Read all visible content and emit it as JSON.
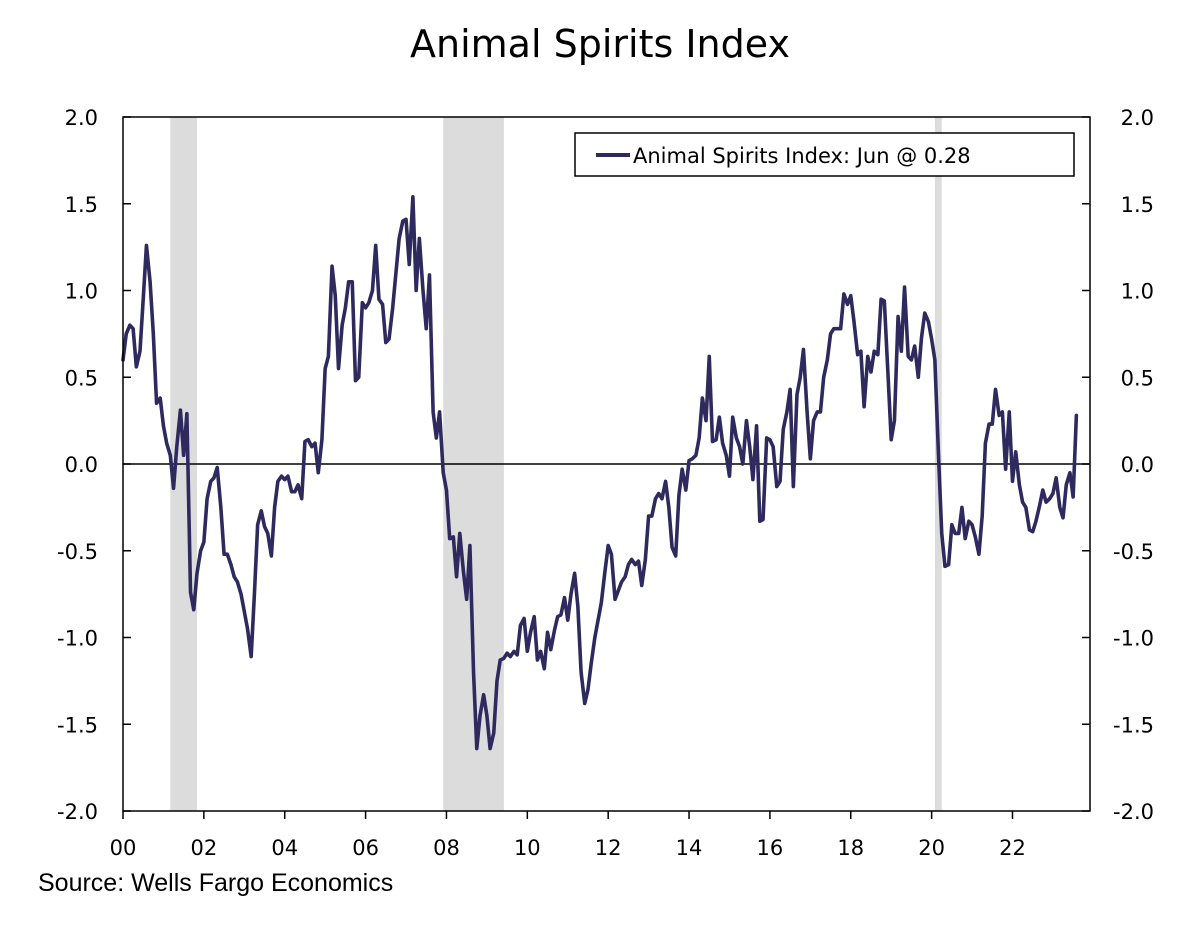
{
  "chart_data": {
    "type": "line",
    "title": "Animal Spirits Index",
    "source": "Source: Wells Fargo Economics",
    "xlim": [
      2000.0,
      2023.917
    ],
    "ylim": [
      -2.0,
      2.0
    ],
    "x_ticks": [
      {
        "value": 2000,
        "label": "00"
      },
      {
        "value": 2002,
        "label": "02"
      },
      {
        "value": 2004,
        "label": "04"
      },
      {
        "value": 2006,
        "label": "06"
      },
      {
        "value": 2008,
        "label": "08"
      },
      {
        "value": 2010,
        "label": "10"
      },
      {
        "value": 2012,
        "label": "12"
      },
      {
        "value": 2014,
        "label": "14"
      },
      {
        "value": 2016,
        "label": "16"
      },
      {
        "value": 2018,
        "label": "18"
      },
      {
        "value": 2020,
        "label": "20"
      },
      {
        "value": 2022,
        "label": "22"
      }
    ],
    "y_ticks": [
      {
        "value": 2.0,
        "label": "2.0"
      },
      {
        "value": 1.5,
        "label": "1.5"
      },
      {
        "value": 1.0,
        "label": "1.0"
      },
      {
        "value": 0.5,
        "label": "0.5"
      },
      {
        "value": 0.0,
        "label": "0.0"
      },
      {
        "value": -0.5,
        "label": "-0.5"
      },
      {
        "value": -1.0,
        "label": "-1.0"
      },
      {
        "value": -1.5,
        "label": "-1.5"
      },
      {
        "value": -2.0,
        "label": "-2.0"
      }
    ],
    "recessions": [
      [
        2001.17,
        2001.83
      ],
      [
        2007.92,
        2009.42
      ],
      [
        2020.08,
        2020.25
      ]
    ],
    "zero_line": true,
    "legend_placement": "top-right",
    "colors": {
      "series": "#2e2a5e",
      "recession": "#dcdcdc"
    },
    "series": [
      {
        "name": "Animal Spirits Index: Jun @ 0.28",
        "points": [
          [
            2000.0,
            0.6
          ],
          [
            2000.08,
            0.75
          ],
          [
            2000.17,
            0.8
          ],
          [
            2000.25,
            0.78
          ],
          [
            2000.33,
            0.56
          ],
          [
            2000.42,
            0.65
          ],
          [
            2000.5,
            0.95
          ],
          [
            2000.58,
            1.26
          ],
          [
            2000.67,
            1.05
          ],
          [
            2000.75,
            0.75
          ],
          [
            2000.83,
            0.35
          ],
          [
            2000.92,
            0.38
          ],
          [
            2001.0,
            0.22
          ],
          [
            2001.08,
            0.12
          ],
          [
            2001.17,
            0.05
          ],
          [
            2001.25,
            -0.14
          ],
          [
            2001.33,
            0.1
          ],
          [
            2001.42,
            0.31
          ],
          [
            2001.5,
            0.05
          ],
          [
            2001.58,
            0.29
          ],
          [
            2001.67,
            -0.74
          ],
          [
            2001.75,
            -0.84
          ],
          [
            2001.83,
            -0.63
          ],
          [
            2001.92,
            -0.5
          ],
          [
            2002.0,
            -0.45
          ],
          [
            2002.08,
            -0.2
          ],
          [
            2002.17,
            -0.1
          ],
          [
            2002.25,
            -0.08
          ],
          [
            2002.33,
            -0.02
          ],
          [
            2002.42,
            -0.25
          ],
          [
            2002.5,
            -0.52
          ],
          [
            2002.58,
            -0.52
          ],
          [
            2002.67,
            -0.58
          ],
          [
            2002.75,
            -0.65
          ],
          [
            2002.83,
            -0.68
          ],
          [
            2002.92,
            -0.75
          ],
          [
            2003.0,
            -0.85
          ],
          [
            2003.08,
            -0.95
          ],
          [
            2003.17,
            -1.11
          ],
          [
            2003.25,
            -0.75
          ],
          [
            2003.33,
            -0.35
          ],
          [
            2003.42,
            -0.27
          ],
          [
            2003.5,
            -0.36
          ],
          [
            2003.58,
            -0.4
          ],
          [
            2003.67,
            -0.53
          ],
          [
            2003.75,
            -0.25
          ],
          [
            2003.83,
            -0.1
          ],
          [
            2003.92,
            -0.07
          ],
          [
            2004.0,
            -0.09
          ],
          [
            2004.08,
            -0.07
          ],
          [
            2004.17,
            -0.16
          ],
          [
            2004.25,
            -0.16
          ],
          [
            2004.33,
            -0.12
          ],
          [
            2004.42,
            -0.2
          ],
          [
            2004.5,
            0.13
          ],
          [
            2004.58,
            0.14
          ],
          [
            2004.67,
            0.1
          ],
          [
            2004.75,
            0.12
          ],
          [
            2004.83,
            -0.05
          ],
          [
            2004.92,
            0.14
          ],
          [
            2005.0,
            0.55
          ],
          [
            2005.08,
            0.62
          ],
          [
            2005.17,
            1.14
          ],
          [
            2005.25,
            0.97
          ],
          [
            2005.33,
            0.55
          ],
          [
            2005.42,
            0.8
          ],
          [
            2005.5,
            0.9
          ],
          [
            2005.58,
            1.05
          ],
          [
            2005.67,
            1.05
          ],
          [
            2005.75,
            0.48
          ],
          [
            2005.83,
            0.5
          ],
          [
            2005.92,
            0.93
          ],
          [
            2006.0,
            0.9
          ],
          [
            2006.08,
            0.93
          ],
          [
            2006.17,
            1.0
          ],
          [
            2006.25,
            1.26
          ],
          [
            2006.33,
            0.95
          ],
          [
            2006.42,
            0.92
          ],
          [
            2006.5,
            0.7
          ],
          [
            2006.58,
            0.72
          ],
          [
            2006.67,
            0.9
          ],
          [
            2006.75,
            1.1
          ],
          [
            2006.83,
            1.3
          ],
          [
            2006.92,
            1.4
          ],
          [
            2007.0,
            1.41
          ],
          [
            2007.08,
            1.15
          ],
          [
            2007.17,
            1.54
          ],
          [
            2007.25,
            1.0
          ],
          [
            2007.33,
            1.3
          ],
          [
            2007.42,
            1.0
          ],
          [
            2007.5,
            0.78
          ],
          [
            2007.58,
            1.09
          ],
          [
            2007.67,
            0.3
          ],
          [
            2007.75,
            0.15
          ],
          [
            2007.83,
            0.3
          ],
          [
            2007.92,
            -0.05
          ],
          [
            2008.0,
            -0.15
          ],
          [
            2008.08,
            -0.43
          ],
          [
            2008.17,
            -0.42
          ],
          [
            2008.25,
            -0.65
          ],
          [
            2008.33,
            -0.4
          ],
          [
            2008.42,
            -0.62
          ],
          [
            2008.5,
            -0.78
          ],
          [
            2008.58,
            -0.47
          ],
          [
            2008.67,
            -1.2
          ],
          [
            2008.75,
            -1.64
          ],
          [
            2008.83,
            -1.45
          ],
          [
            2008.92,
            -1.33
          ],
          [
            2009.0,
            -1.45
          ],
          [
            2009.08,
            -1.64
          ],
          [
            2009.17,
            -1.55
          ],
          [
            2009.25,
            -1.25
          ],
          [
            2009.33,
            -1.13
          ],
          [
            2009.42,
            -1.12
          ],
          [
            2009.5,
            -1.09
          ],
          [
            2009.58,
            -1.11
          ],
          [
            2009.67,
            -1.08
          ],
          [
            2009.75,
            -1.1
          ],
          [
            2009.83,
            -0.93
          ],
          [
            2009.92,
            -0.89
          ],
          [
            2010.0,
            -1.08
          ],
          [
            2010.08,
            -0.97
          ],
          [
            2010.17,
            -0.88
          ],
          [
            2010.25,
            -1.13
          ],
          [
            2010.33,
            -1.08
          ],
          [
            2010.42,
            -1.18
          ],
          [
            2010.5,
            -0.97
          ],
          [
            2010.58,
            -1.07
          ],
          [
            2010.67,
            -0.96
          ],
          [
            2010.75,
            -0.88
          ],
          [
            2010.83,
            -0.87
          ],
          [
            2010.92,
            -0.77
          ],
          [
            2011.0,
            -0.9
          ],
          [
            2011.08,
            -0.75
          ],
          [
            2011.17,
            -0.63
          ],
          [
            2011.25,
            -0.82
          ],
          [
            2011.33,
            -1.2
          ],
          [
            2011.42,
            -1.38
          ],
          [
            2011.5,
            -1.3
          ],
          [
            2011.58,
            -1.15
          ],
          [
            2011.67,
            -1.0
          ],
          [
            2011.75,
            -0.9
          ],
          [
            2011.83,
            -0.8
          ],
          [
            2011.92,
            -0.62
          ],
          [
            2012.0,
            -0.47
          ],
          [
            2012.08,
            -0.52
          ],
          [
            2012.17,
            -0.78
          ],
          [
            2012.25,
            -0.73
          ],
          [
            2012.33,
            -0.68
          ],
          [
            2012.42,
            -0.65
          ],
          [
            2012.5,
            -0.58
          ],
          [
            2012.58,
            -0.55
          ],
          [
            2012.67,
            -0.58
          ],
          [
            2012.75,
            -0.56
          ],
          [
            2012.83,
            -0.7
          ],
          [
            2012.92,
            -0.55
          ],
          [
            2013.0,
            -0.3
          ],
          [
            2013.08,
            -0.3
          ],
          [
            2013.17,
            -0.2
          ],
          [
            2013.25,
            -0.17
          ],
          [
            2013.33,
            -0.2
          ],
          [
            2013.42,
            -0.1
          ],
          [
            2013.5,
            -0.25
          ],
          [
            2013.58,
            -0.48
          ],
          [
            2013.67,
            -0.53
          ],
          [
            2013.75,
            -0.18
          ],
          [
            2013.83,
            -0.03
          ],
          [
            2013.92,
            -0.15
          ],
          [
            2014.0,
            0.02
          ],
          [
            2014.08,
            0.03
          ],
          [
            2014.17,
            0.05
          ],
          [
            2014.25,
            0.15
          ],
          [
            2014.33,
            0.38
          ],
          [
            2014.42,
            0.25
          ],
          [
            2014.5,
            0.62
          ],
          [
            2014.58,
            0.13
          ],
          [
            2014.67,
            0.14
          ],
          [
            2014.75,
            0.27
          ],
          [
            2014.83,
            0.12
          ],
          [
            2014.92,
            0.05
          ],
          [
            2015.0,
            -0.07
          ],
          [
            2015.08,
            0.27
          ],
          [
            2015.17,
            0.15
          ],
          [
            2015.25,
            0.1
          ],
          [
            2015.33,
            0.0
          ],
          [
            2015.42,
            0.25
          ],
          [
            2015.5,
            0.1
          ],
          [
            2015.58,
            -0.09
          ],
          [
            2015.67,
            0.22
          ],
          [
            2015.75,
            -0.33
          ],
          [
            2015.83,
            -0.32
          ],
          [
            2015.92,
            0.15
          ],
          [
            2016.0,
            0.14
          ],
          [
            2016.08,
            0.1
          ],
          [
            2016.17,
            -0.13
          ],
          [
            2016.25,
            -0.1
          ],
          [
            2016.33,
            0.2
          ],
          [
            2016.42,
            0.3
          ],
          [
            2016.5,
            0.43
          ],
          [
            2016.58,
            -0.13
          ],
          [
            2016.67,
            0.4
          ],
          [
            2016.75,
            0.5
          ],
          [
            2016.83,
            0.66
          ],
          [
            2016.92,
            0.3
          ],
          [
            2017.0,
            0.03
          ],
          [
            2017.08,
            0.25
          ],
          [
            2017.17,
            0.3
          ],
          [
            2017.25,
            0.3
          ],
          [
            2017.33,
            0.5
          ],
          [
            2017.42,
            0.6
          ],
          [
            2017.5,
            0.75
          ],
          [
            2017.58,
            0.78
          ],
          [
            2017.67,
            0.78
          ],
          [
            2017.75,
            0.78
          ],
          [
            2017.83,
            0.98
          ],
          [
            2017.92,
            0.92
          ],
          [
            2018.0,
            0.97
          ],
          [
            2018.08,
            0.82
          ],
          [
            2018.17,
            0.63
          ],
          [
            2018.25,
            0.65
          ],
          [
            2018.33,
            0.33
          ],
          [
            2018.42,
            0.62
          ],
          [
            2018.5,
            0.53
          ],
          [
            2018.58,
            0.65
          ],
          [
            2018.67,
            0.63
          ],
          [
            2018.75,
            0.95
          ],
          [
            2018.83,
            0.94
          ],
          [
            2018.92,
            0.52
          ],
          [
            2019.0,
            0.14
          ],
          [
            2019.08,
            0.25
          ],
          [
            2019.17,
            0.85
          ],
          [
            2019.25,
            0.65
          ],
          [
            2019.33,
            1.02
          ],
          [
            2019.42,
            0.62
          ],
          [
            2019.5,
            0.6
          ],
          [
            2019.58,
            0.68
          ],
          [
            2019.67,
            0.5
          ],
          [
            2019.75,
            0.73
          ],
          [
            2019.83,
            0.87
          ],
          [
            2019.92,
            0.82
          ],
          [
            2020.0,
            0.72
          ],
          [
            2020.08,
            0.6
          ],
          [
            2020.17,
            0.05
          ],
          [
            2020.25,
            -0.4
          ],
          [
            2020.33,
            -0.59
          ],
          [
            2020.42,
            -0.58
          ],
          [
            2020.5,
            -0.35
          ],
          [
            2020.58,
            -0.4
          ],
          [
            2020.67,
            -0.4
          ],
          [
            2020.75,
            -0.25
          ],
          [
            2020.83,
            -0.43
          ],
          [
            2020.92,
            -0.33
          ],
          [
            2021.0,
            -0.35
          ],
          [
            2021.08,
            -0.42
          ],
          [
            2021.17,
            -0.52
          ],
          [
            2021.25,
            -0.3
          ],
          [
            2021.33,
            0.12
          ],
          [
            2021.42,
            0.23
          ],
          [
            2021.5,
            0.23
          ],
          [
            2021.58,
            0.43
          ],
          [
            2021.67,
            0.28
          ],
          [
            2021.75,
            0.3
          ],
          [
            2021.83,
            -0.03
          ],
          [
            2021.92,
            0.3
          ],
          [
            2022.0,
            -0.1
          ],
          [
            2022.08,
            0.07
          ],
          [
            2022.17,
            -0.12
          ],
          [
            2022.25,
            -0.22
          ],
          [
            2022.33,
            -0.25
          ],
          [
            2022.42,
            -0.38
          ],
          [
            2022.5,
            -0.39
          ],
          [
            2022.58,
            -0.33
          ],
          [
            2022.67,
            -0.24
          ],
          [
            2022.75,
            -0.15
          ],
          [
            2022.83,
            -0.22
          ],
          [
            2022.92,
            -0.2
          ],
          [
            2023.0,
            -0.17
          ],
          [
            2023.08,
            -0.08
          ],
          [
            2023.17,
            -0.25
          ],
          [
            2023.25,
            -0.31
          ],
          [
            2023.33,
            -0.12
          ],
          [
            2023.42,
            -0.05
          ],
          [
            2023.5,
            -0.19
          ],
          [
            2023.58,
            0.28
          ]
        ]
      }
    ]
  }
}
